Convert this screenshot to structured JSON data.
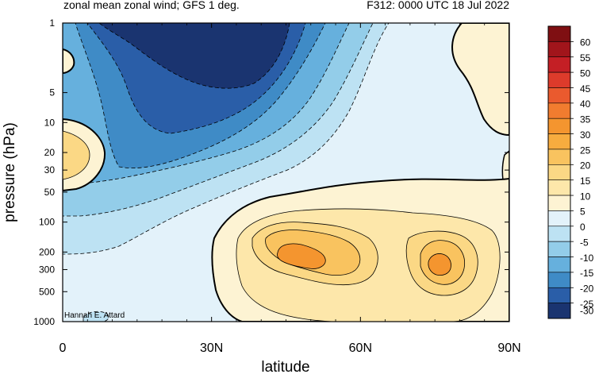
{
  "titles": {
    "left": "zonal mean zonal wind; GFS 1 deg.",
    "right": "F312: 0000 UTC 18 Jul 2022"
  },
  "chart_data": {
    "type": "contour",
    "title": "zonal mean zonal wind; GFS 1 deg.",
    "subtitle": "F312: 0000 UTC 18 Jul 2022",
    "xlabel": "latitude",
    "ylabel": "pressure (hPa)",
    "credit": "Hannah E. Attard",
    "x_axis": {
      "range": [
        0,
        90
      ],
      "ticks": [
        0,
        30,
        60,
        90
      ],
      "tick_labels": [
        "0",
        "30N",
        "60N",
        "90N"
      ]
    },
    "y_axis": {
      "scale": "log",
      "reversed": true,
      "range": [
        1000,
        1
      ],
      "ticks": [
        1,
        5,
        10,
        20,
        30,
        50,
        100,
        200,
        300,
        500,
        1000
      ],
      "tick_labels": [
        "1",
        "5",
        "10",
        "20",
        "30",
        "50",
        "100",
        "200",
        "300",
        "500",
        "1000"
      ]
    },
    "colorbar": {
      "labels": [
        "60",
        "55",
        "50",
        "45",
        "40",
        "35",
        "30",
        "25",
        "20",
        "15",
        "10",
        "5",
        "0",
        "-5",
        "-10",
        "-15",
        "-20",
        "-25",
        "-30"
      ],
      "colors": [
        "#7f0f12",
        "#a1151b",
        "#c41f25",
        "#dd3b2b",
        "#ea5a2e",
        "#f17c2f",
        "#f4952f",
        "#f7ac3f",
        "#f9c35f",
        "#fbd885",
        "#fde7aa",
        "#fdf3d3",
        "#e3f2fa",
        "#bde2f3",
        "#93cde9",
        "#66b0dd",
        "#3f8bc6",
        "#2a5ea8",
        "#1a3470"
      ]
    },
    "features": [
      {
        "name": "stratospheric easterlies",
        "lat_range": [
          0,
          40
        ],
        "p_range": [
          1,
          5
        ],
        "min_value": -30
      },
      {
        "name": "tropical westerly core",
        "lat": 0,
        "p": 20,
        "value": 10
      },
      {
        "name": "subtropical jet",
        "lat": 46,
        "p": 220,
        "max_value": 20
      },
      {
        "name": "polar jet",
        "lat": 76,
        "p": 300,
        "max_value": 20
      },
      {
        "name": "polar westerlies aloft",
        "lat_range": [
          75,
          90
        ],
        "p_range": [
          1,
          30
        ],
        "value": 5
      }
    ]
  }
}
